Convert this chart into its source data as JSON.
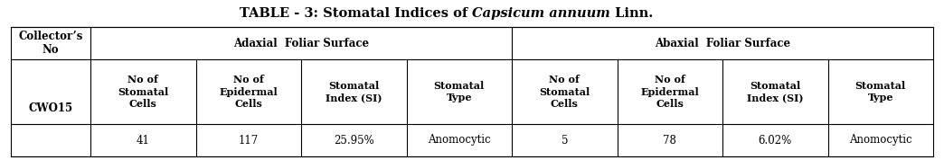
{
  "title_plain": "TABLE - 3: Stomatal Indices of ",
  "title_italic": "Capsicum annuum",
  "title_plain2": " Linn.",
  "title_fontsize": 10.5,
  "table_fontsize": 8.5,
  "header1_left": "Collector’s\nNo",
  "header1_adaxial": "Adaxial  Foliar Surface",
  "header1_abaxial": "Abaxial  Foliar Surface",
  "header2_cols": [
    "No of\nStomatal\nCells",
    "No of\nEpidermal\nCells",
    "Stomatal\nIndex (SI)",
    "Stomatal\nType",
    "No of\nStomatal\nCells",
    "No of\nEpidermal\nCells",
    "Stomatal\nIndex (SI)",
    "Stomatal\nType"
  ],
  "data_row_label": "CWO15",
  "data_values": [
    "41",
    "117",
    "25.95%",
    "Anomocytic",
    "5",
    "78",
    "6.02%",
    "Anomocytic"
  ],
  "bg_color": "#ffffff",
  "border_color": "#000000",
  "text_color": "#000000",
  "font_family": "DejaVu Serif",
  "fig_width": 10.44,
  "fig_height": 1.78,
  "dpi": 100
}
